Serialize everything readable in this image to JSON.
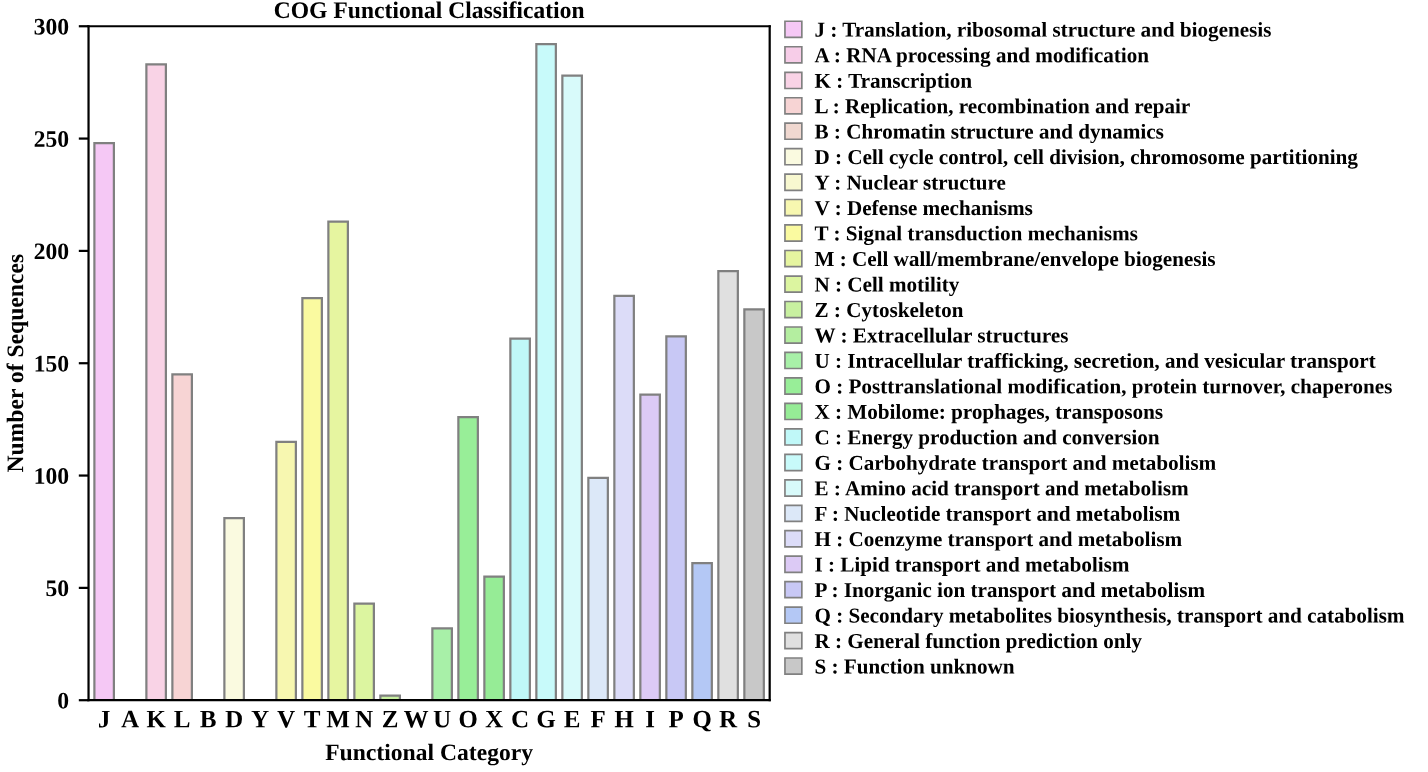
{
  "chart_data": {
    "type": "bar",
    "title": "COG Functional Classification",
    "xlabel": "Functional Category",
    "ylabel": "Number of Sequences",
    "categories": [
      "J",
      "A",
      "K",
      "L",
      "B",
      "D",
      "Y",
      "V",
      "T",
      "M",
      "N",
      "Z",
      "W",
      "U",
      "O",
      "X",
      "C",
      "G",
      "E",
      "F",
      "H",
      "I",
      "P",
      "Q",
      "R",
      "S"
    ],
    "series": [
      {
        "name": "J : Translation, ribosomal structure and biogenesis",
        "color": "#f5c8f5",
        "values": [
          248,
          null,
          null,
          null,
          null,
          null,
          null,
          null,
          null,
          null,
          null,
          null,
          null,
          null,
          null,
          null,
          null,
          null,
          null,
          null,
          null,
          null,
          null,
          null,
          null,
          null
        ]
      },
      {
        "name": "A : RNA processing and modification",
        "color": "#f7cde8",
        "values": [
          null,
          null,
          null,
          null,
          null,
          null,
          null,
          null,
          null,
          null,
          null,
          null,
          null,
          null,
          null,
          null,
          null,
          null,
          null,
          null,
          null,
          null,
          null,
          null,
          null,
          null
        ]
      },
      {
        "name": "K : Transcription",
        "color": "#f9d3e6",
        "values": [
          null,
          null,
          283,
          null,
          null,
          null,
          null,
          null,
          null,
          null,
          null,
          null,
          null,
          null,
          null,
          null,
          null,
          null,
          null,
          null,
          null,
          null,
          null,
          null,
          null,
          null
        ]
      },
      {
        "name": "L : Replication, recombination and repair",
        "color": "#f7d4d4",
        "values": [
          null,
          null,
          null,
          145,
          null,
          null,
          null,
          null,
          null,
          null,
          null,
          null,
          null,
          null,
          null,
          null,
          null,
          null,
          null,
          null,
          null,
          null,
          null,
          null,
          null,
          null
        ]
      },
      {
        "name": "B : Chromatin structure and dynamics",
        "color": "#f0d8d0",
        "values": [
          null,
          null,
          null,
          null,
          null,
          null,
          null,
          null,
          null,
          null,
          null,
          null,
          null,
          null,
          null,
          null,
          null,
          null,
          null,
          null,
          null,
          null,
          null,
          null,
          null,
          null
        ]
      },
      {
        "name": "D : Cell cycle control, cell division, chromosome partitioning",
        "color": "#fafae0",
        "values": [
          null,
          null,
          null,
          null,
          null,
          81,
          null,
          null,
          null,
          null,
          null,
          null,
          null,
          null,
          null,
          null,
          null,
          null,
          null,
          null,
          null,
          null,
          null,
          null,
          null,
          null
        ]
      },
      {
        "name": "Y : Nuclear structure",
        "color": "#f8f8d0",
        "values": [
          null,
          null,
          null,
          null,
          null,
          null,
          null,
          null,
          null,
          null,
          null,
          null,
          null,
          null,
          null,
          null,
          null,
          null,
          null,
          null,
          null,
          null,
          null,
          null,
          null,
          null
        ]
      },
      {
        "name": "V : Defense mechanisms",
        "color": "#f7f7b0",
        "values": [
          null,
          null,
          null,
          null,
          null,
          null,
          null,
          115,
          null,
          null,
          null,
          null,
          null,
          null,
          null,
          null,
          null,
          null,
          null,
          null,
          null,
          null,
          null,
          null,
          null,
          null
        ]
      },
      {
        "name": "T : Signal transduction mechanisms",
        "color": "#fafaa0",
        "values": [
          null,
          null,
          null,
          null,
          null,
          null,
          null,
          null,
          179,
          null,
          null,
          null,
          null,
          null,
          null,
          null,
          null,
          null,
          null,
          null,
          null,
          null,
          null,
          null,
          null,
          null
        ]
      },
      {
        "name": "M : Cell wall/membrane/envelope biogenesis",
        "color": "#e6f5a0",
        "values": [
          null,
          null,
          null,
          null,
          null,
          null,
          null,
          null,
          null,
          213,
          null,
          null,
          null,
          null,
          null,
          null,
          null,
          null,
          null,
          null,
          null,
          null,
          null,
          null,
          null,
          null
        ]
      },
      {
        "name": "N : Cell motility",
        "color": "#dcf5a0",
        "values": [
          null,
          null,
          null,
          null,
          null,
          null,
          null,
          null,
          null,
          null,
          43,
          null,
          null,
          null,
          null,
          null,
          null,
          null,
          null,
          null,
          null,
          null,
          null,
          null,
          null,
          null
        ]
      },
      {
        "name": "Z : Cytoskeleton",
        "color": "#c8f0a0",
        "values": [
          null,
          null,
          null,
          null,
          null,
          null,
          null,
          null,
          null,
          null,
          null,
          2,
          null,
          null,
          null,
          null,
          null,
          null,
          null,
          null,
          null,
          null,
          null,
          null,
          null,
          null
        ]
      },
      {
        "name": "W : Extracellular structures",
        "color": "#b4eea0",
        "values": [
          null,
          null,
          null,
          null,
          null,
          null,
          null,
          null,
          null,
          null,
          null,
          null,
          null,
          null,
          null,
          null,
          null,
          null,
          null,
          null,
          null,
          null,
          null,
          null,
          null,
          null
        ]
      },
      {
        "name": "U : Intracellular trafficking, secretion, and vesicular transport",
        "color": "#a8f0a8",
        "values": [
          null,
          null,
          null,
          null,
          null,
          null,
          null,
          null,
          null,
          null,
          null,
          null,
          null,
          32,
          null,
          null,
          null,
          null,
          null,
          null,
          null,
          null,
          null,
          null,
          null,
          null
        ]
      },
      {
        "name": "O : Posttranslational modification, protein turnover, chaperones",
        "color": "#98ee98",
        "values": [
          null,
          null,
          null,
          null,
          null,
          null,
          null,
          null,
          null,
          null,
          null,
          null,
          null,
          null,
          126,
          null,
          null,
          null,
          null,
          null,
          null,
          null,
          null,
          null,
          null,
          null
        ]
      },
      {
        "name": "X : Mobilome: prophages, transposons",
        "color": "#96ec96",
        "values": [
          null,
          null,
          null,
          null,
          null,
          null,
          null,
          null,
          null,
          null,
          null,
          null,
          null,
          null,
          null,
          55,
          null,
          null,
          null,
          null,
          null,
          null,
          null,
          null,
          null,
          null
        ]
      },
      {
        "name": "C : Energy production and conversion",
        "color": "#c0f8f8",
        "values": [
          null,
          null,
          null,
          null,
          null,
          null,
          null,
          null,
          null,
          null,
          null,
          null,
          null,
          null,
          null,
          null,
          161,
          null,
          null,
          null,
          null,
          null,
          null,
          null,
          null,
          null
        ]
      },
      {
        "name": "G : Carbohydrate transport and metabolism",
        "color": "#c8fafa",
        "values": [
          null,
          null,
          null,
          null,
          null,
          null,
          null,
          null,
          null,
          null,
          null,
          null,
          null,
          null,
          null,
          null,
          null,
          292,
          null,
          null,
          null,
          null,
          null,
          null,
          null,
          null
        ]
      },
      {
        "name": "E : Amino acid transport and metabolism",
        "color": "#d8fafa",
        "values": [
          null,
          null,
          null,
          null,
          null,
          null,
          null,
          null,
          null,
          null,
          null,
          null,
          null,
          null,
          null,
          null,
          null,
          null,
          278,
          null,
          null,
          null,
          null,
          null,
          null,
          null
        ]
      },
      {
        "name": "F : Nucleotide transport and metabolism",
        "color": "#dce8f8",
        "values": [
          null,
          null,
          null,
          null,
          null,
          null,
          null,
          null,
          null,
          null,
          null,
          null,
          null,
          null,
          null,
          null,
          null,
          null,
          null,
          99,
          null,
          null,
          null,
          null,
          null,
          null
        ]
      },
      {
        "name": "H : Coenzyme transport and metabolism",
        "color": "#dcdcf8",
        "values": [
          null,
          null,
          null,
          null,
          null,
          null,
          null,
          null,
          null,
          null,
          null,
          null,
          null,
          null,
          null,
          null,
          null,
          null,
          null,
          null,
          180,
          null,
          null,
          null,
          null,
          null
        ]
      },
      {
        "name": "I : Lipid transport and metabolism",
        "color": "#dccaf5",
        "values": [
          null,
          null,
          null,
          null,
          null,
          null,
          null,
          null,
          null,
          null,
          null,
          null,
          null,
          null,
          null,
          null,
          null,
          null,
          null,
          null,
          null,
          136,
          null,
          null,
          null,
          null
        ]
      },
      {
        "name": "P : Inorganic ion transport and metabolism",
        "color": "#c8c8f5",
        "values": [
          null,
          null,
          null,
          null,
          null,
          null,
          null,
          null,
          null,
          null,
          null,
          null,
          null,
          null,
          null,
          null,
          null,
          null,
          null,
          null,
          null,
          null,
          162,
          null,
          null,
          null
        ]
      },
      {
        "name": "Q : Secondary metabolites biosynthesis, transport and catabolism",
        "color": "#b4c8f5",
        "values": [
          null,
          null,
          null,
          null,
          null,
          null,
          null,
          null,
          null,
          null,
          null,
          null,
          null,
          null,
          null,
          null,
          null,
          null,
          null,
          null,
          null,
          null,
          null,
          61,
          null,
          null
        ]
      },
      {
        "name": "R : General function prediction only",
        "color": "#e0e0e0",
        "values": [
          null,
          null,
          null,
          null,
          null,
          null,
          null,
          null,
          null,
          null,
          null,
          null,
          null,
          null,
          null,
          null,
          null,
          null,
          null,
          null,
          null,
          null,
          null,
          null,
          191,
          null
        ]
      },
      {
        "name": "S : Function unknown",
        "color": "#c8c8c8",
        "values": [
          null,
          null,
          null,
          null,
          null,
          null,
          null,
          null,
          null,
          null,
          null,
          null,
          null,
          null,
          null,
          null,
          null,
          null,
          null,
          null,
          null,
          null,
          null,
          null,
          null,
          174
        ]
      }
    ],
    "ylim": [
      0,
      300
    ],
    "yticks": [
      0,
      50,
      100,
      150,
      200,
      250,
      300
    ],
    "grid": false,
    "legend": "right"
  }
}
